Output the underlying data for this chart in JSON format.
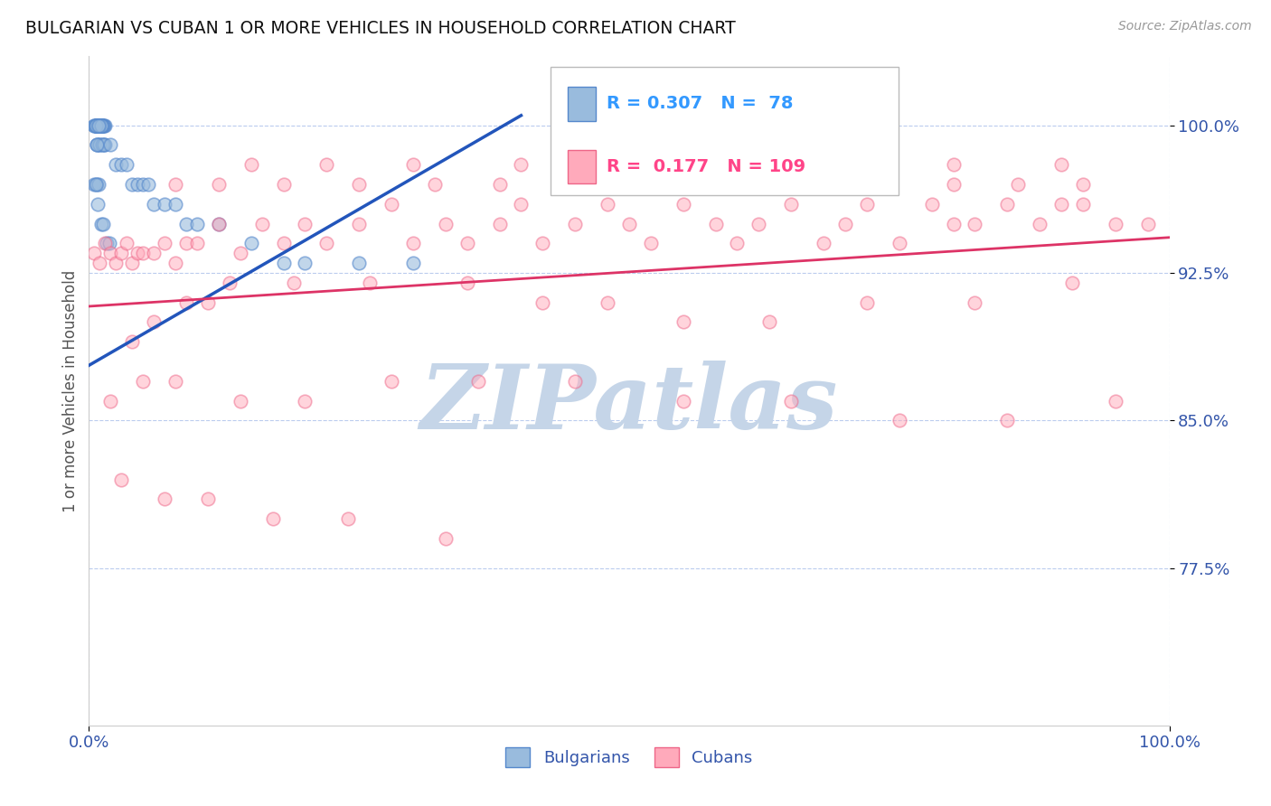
{
  "title": "BULGARIAN VS CUBAN 1 OR MORE VEHICLES IN HOUSEHOLD CORRELATION CHART",
  "source": "Source: ZipAtlas.com",
  "ylabel": "1 or more Vehicles in Household",
  "xlim": [
    0.0,
    1.0
  ],
  "ylim": [
    0.695,
    1.035
  ],
  "yticks": [
    0.775,
    0.85,
    0.925,
    1.0
  ],
  "ytick_labels": [
    "77.5%",
    "85.0%",
    "92.5%",
    "100.0%"
  ],
  "xticks": [
    0.0,
    1.0
  ],
  "xtick_labels": [
    "0.0%",
    "100.0%"
  ],
  "blue_R": 0.307,
  "blue_N": 78,
  "pink_R": 0.177,
  "pink_N": 109,
  "blue_scatter_color": "#99BBDD",
  "blue_edge_color": "#5588CC",
  "pink_scatter_color": "#FFAABB",
  "pink_edge_color": "#EE6688",
  "blue_line_color": "#2255BB",
  "pink_line_color": "#DD3366",
  "background_color": "#FFFFFF",
  "grid_color": "#BBCCEE",
  "title_color": "#111111",
  "axis_label_color": "#3355AA",
  "watermark_color": "#C5D5E8",
  "legend_blue_color": "#3399FF",
  "legend_pink_color": "#FF4488",
  "blue_x": [
    0.005,
    0.008,
    0.01,
    0.012,
    0.015,
    0.008,
    0.01,
    0.007,
    0.009,
    0.011,
    0.006,
    0.013,
    0.009,
    0.007,
    0.01,
    0.008,
    0.012,
    0.006,
    0.014,
    0.009,
    0.007,
    0.01,
    0.008,
    0.011,
    0.006,
    0.013,
    0.009,
    0.015,
    0.007,
    0.01,
    0.008,
    0.012,
    0.005,
    0.009,
    0.011,
    0.007,
    0.013,
    0.008,
    0.01,
    0.006,
    0.012,
    0.009,
    0.007,
    0.014,
    0.008,
    0.01,
    0.006,
    0.011,
    0.009,
    0.007,
    0.02,
    0.025,
    0.03,
    0.035,
    0.04,
    0.045,
    0.05,
    0.055,
    0.06,
    0.07,
    0.08,
    0.09,
    0.1,
    0.12,
    0.15,
    0.18,
    0.2,
    0.25,
    0.3,
    0.005,
    0.007,
    0.009,
    0.006,
    0.008,
    0.011,
    0.013,
    0.016,
    0.019
  ],
  "blue_y": [
    1.0,
    1.0,
    1.0,
    1.0,
    1.0,
    0.99,
    0.99,
    1.0,
    1.0,
    1.0,
    1.0,
    1.0,
    1.0,
    1.0,
    1.0,
    1.0,
    1.0,
    1.0,
    1.0,
    1.0,
    1.0,
    1.0,
    1.0,
    1.0,
    1.0,
    1.0,
    1.0,
    0.99,
    1.0,
    1.0,
    1.0,
    1.0,
    1.0,
    1.0,
    1.0,
    0.99,
    0.99,
    1.0,
    0.99,
    1.0,
    0.99,
    1.0,
    1.0,
    0.99,
    1.0,
    1.0,
    1.0,
    1.0,
    1.0,
    0.99,
    0.99,
    0.98,
    0.98,
    0.98,
    0.97,
    0.97,
    0.97,
    0.97,
    0.96,
    0.96,
    0.96,
    0.95,
    0.95,
    0.95,
    0.94,
    0.93,
    0.93,
    0.93,
    0.93,
    0.97,
    0.97,
    0.97,
    0.97,
    0.96,
    0.95,
    0.95,
    0.94,
    0.94
  ],
  "pink_x": [
    0.005,
    0.01,
    0.015,
    0.02,
    0.025,
    0.03,
    0.035,
    0.04,
    0.045,
    0.05,
    0.06,
    0.07,
    0.08,
    0.09,
    0.1,
    0.12,
    0.14,
    0.16,
    0.18,
    0.2,
    0.22,
    0.25,
    0.28,
    0.3,
    0.33,
    0.35,
    0.38,
    0.4,
    0.42,
    0.45,
    0.48,
    0.5,
    0.52,
    0.55,
    0.58,
    0.6,
    0.62,
    0.65,
    0.68,
    0.7,
    0.72,
    0.75,
    0.78,
    0.8,
    0.82,
    0.85,
    0.88,
    0.9,
    0.92,
    0.95,
    0.98,
    0.08,
    0.12,
    0.18,
    0.25,
    0.32,
    0.38,
    0.44,
    0.5,
    0.56,
    0.62,
    0.68,
    0.74,
    0.8,
    0.86,
    0.92,
    0.15,
    0.22,
    0.3,
    0.4,
    0.5,
    0.6,
    0.7,
    0.8,
    0.9,
    0.04,
    0.06,
    0.09,
    0.11,
    0.13,
    0.19,
    0.26,
    0.35,
    0.42,
    0.48,
    0.55,
    0.63,
    0.72,
    0.82,
    0.91,
    0.02,
    0.05,
    0.08,
    0.14,
    0.2,
    0.28,
    0.36,
    0.45,
    0.55,
    0.65,
    0.75,
    0.85,
    0.95,
    0.03,
    0.07,
    0.11,
    0.17,
    0.24,
    0.33
  ],
  "pink_y": [
    0.935,
    0.93,
    0.94,
    0.935,
    0.93,
    0.935,
    0.94,
    0.93,
    0.935,
    0.935,
    0.935,
    0.94,
    0.93,
    0.94,
    0.94,
    0.95,
    0.935,
    0.95,
    0.94,
    0.95,
    0.94,
    0.95,
    0.96,
    0.94,
    0.95,
    0.94,
    0.95,
    0.96,
    0.94,
    0.95,
    0.96,
    0.95,
    0.94,
    0.96,
    0.95,
    0.94,
    0.95,
    0.96,
    0.94,
    0.95,
    0.96,
    0.94,
    0.96,
    0.95,
    0.95,
    0.96,
    0.95,
    0.96,
    0.96,
    0.95,
    0.95,
    0.97,
    0.97,
    0.97,
    0.97,
    0.97,
    0.97,
    0.97,
    0.97,
    0.97,
    0.97,
    0.97,
    0.97,
    0.97,
    0.97,
    0.97,
    0.98,
    0.98,
    0.98,
    0.98,
    0.98,
    0.98,
    0.98,
    0.98,
    0.98,
    0.89,
    0.9,
    0.91,
    0.91,
    0.92,
    0.92,
    0.92,
    0.92,
    0.91,
    0.91,
    0.9,
    0.9,
    0.91,
    0.91,
    0.92,
    0.86,
    0.87,
    0.87,
    0.86,
    0.86,
    0.87,
    0.87,
    0.87,
    0.86,
    0.86,
    0.85,
    0.85,
    0.86,
    0.82,
    0.81,
    0.81,
    0.8,
    0.8,
    0.79
  ],
  "blue_line_x0": 0.0,
  "blue_line_x1": 0.4,
  "blue_line_y0": 0.878,
  "blue_line_y1": 1.005,
  "pink_line_x0": 0.0,
  "pink_line_x1": 1.0,
  "pink_line_y0": 0.908,
  "pink_line_y1": 0.943
}
